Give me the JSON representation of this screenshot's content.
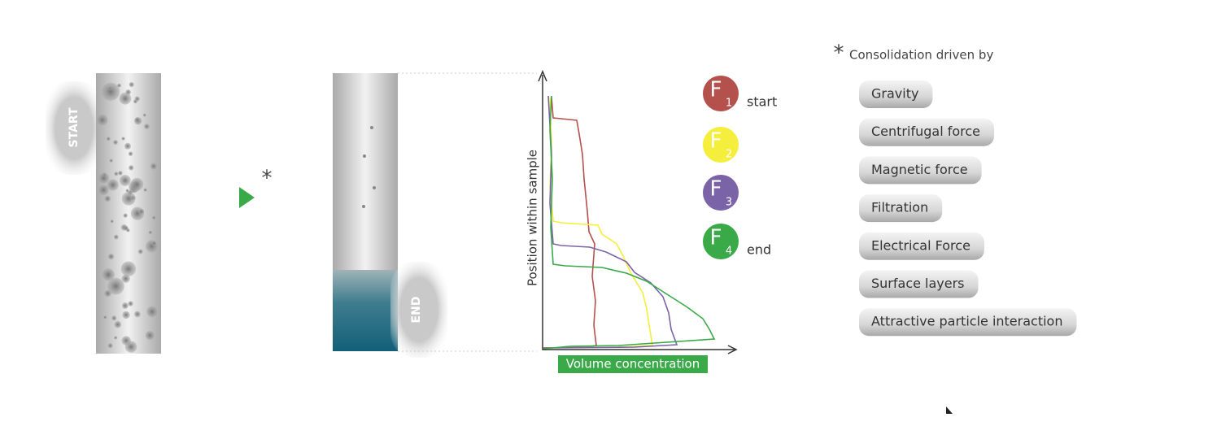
{
  "before": {
    "label": "START"
  },
  "arrow": {
    "mark": "*"
  },
  "after": {
    "label": "END"
  },
  "plot": {
    "y_axis_label": "Position within sample",
    "x_axis_label": "Volume concentration"
  },
  "legend": [
    {
      "letter": "F",
      "index": "1",
      "label": "start",
      "color": "#b5514d"
    },
    {
      "letter": "F",
      "index": "2",
      "color": "#f5ee3c"
    },
    {
      "letter": "F",
      "index": "3",
      "color": "#7b63a8"
    },
    {
      "letter": "F",
      "index": "4",
      "label": "end",
      "color": "#3aaa49"
    }
  ],
  "drivers": {
    "mark": "*",
    "title": "Consolidation driven by",
    "items": [
      "Gravity",
      "Centrifugal force",
      "Magnetic force",
      "Filtration",
      "Electrical Force",
      "Surface layers",
      "Attractive particle interaction"
    ]
  }
}
